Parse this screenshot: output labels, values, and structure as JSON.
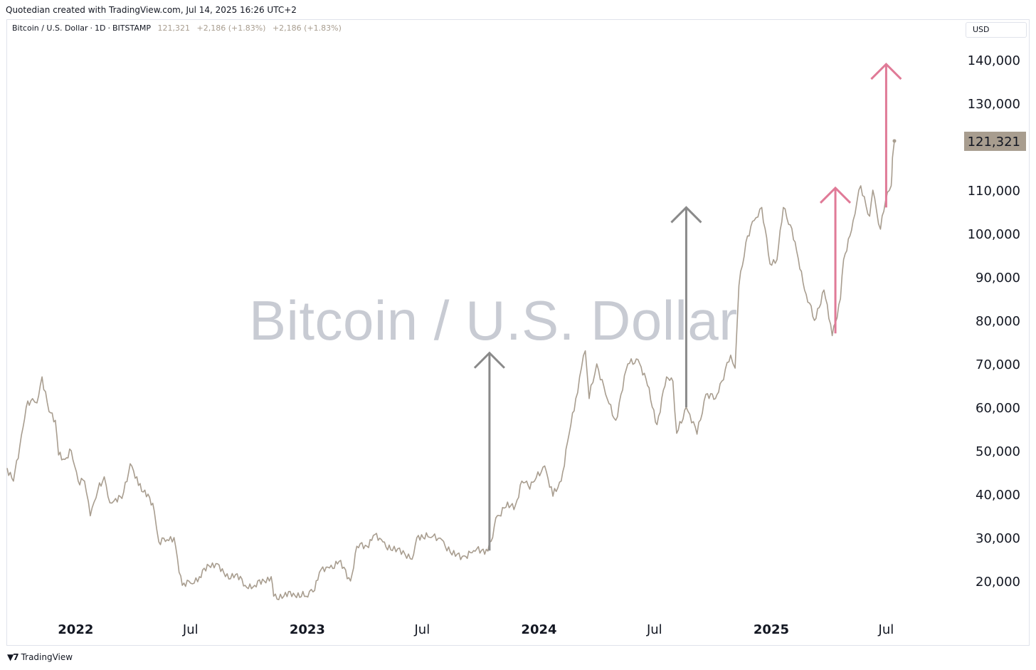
{
  "header": {
    "created_text": "Quotedian created with TradingView.com, Jul 14, 2025 16:26 UTC+2"
  },
  "legend": {
    "symbol": "Bitcoin / U.S. Dollar",
    "interval": "1D",
    "exchange": "BITSTAMP",
    "sep": "·",
    "last": "121,321",
    "change1": "+2,186 (+1.83%)",
    "change2": "+2,186 (+1.83%)"
  },
  "currency_label": "USD",
  "watermark": "Bitcoin / U.S. Dollar",
  "footer": {
    "logo_icon": "tradingview-logo-icon",
    "logo_text": "TradingView"
  },
  "colors": {
    "line": "#a89d8f",
    "arrow_gray": "#8a8a8a",
    "arrow_pink": "#e07a97",
    "last_badge": "#a89d8f"
  },
  "chart_data": {
    "type": "line",
    "x_start": "2021-09-15",
    "x_end": "2025-07-14",
    "ylim": [
      12000,
      145000
    ],
    "y_ticks": [
      {
        "value": 20000,
        "label": "20,000"
      },
      {
        "value": 30000,
        "label": "30,000"
      },
      {
        "value": 40000,
        "label": "40,000"
      },
      {
        "value": 50000,
        "label": "50,000"
      },
      {
        "value": 60000,
        "label": "60,000"
      },
      {
        "value": 70000,
        "label": "70,000"
      },
      {
        "value": 80000,
        "label": "80,000"
      },
      {
        "value": 90000,
        "label": "90,000"
      },
      {
        "value": 100000,
        "label": "100,000"
      },
      {
        "value": 110000,
        "label": "110,000"
      },
      {
        "value": 130000,
        "label": "130,000"
      },
      {
        "value": 140000,
        "label": "140,000"
      }
    ],
    "x_ticks": [
      {
        "date": "2022-01-01",
        "label": "2022",
        "bold": true
      },
      {
        "date": "2022-07-01",
        "label": "Jul",
        "bold": false
      },
      {
        "date": "2023-01-01",
        "label": "2023",
        "bold": true
      },
      {
        "date": "2023-07-01",
        "label": "Jul",
        "bold": false
      },
      {
        "date": "2024-01-01",
        "label": "2024",
        "bold": true
      },
      {
        "date": "2024-07-01",
        "label": "Jul",
        "bold": false
      },
      {
        "date": "2025-01-01",
        "label": "2025",
        "bold": true
      },
      {
        "date": "2025-07-01",
        "label": "Jul",
        "bold": false
      }
    ],
    "last_price": {
      "value": 121321,
      "label": "121,321"
    },
    "series": [
      {
        "points": [
          [
            "2021-09-15",
            46000
          ],
          [
            "2021-09-25",
            43000
          ],
          [
            "2021-10-05",
            51000
          ],
          [
            "2021-10-15",
            60000
          ],
          [
            "2021-10-25",
            62000
          ],
          [
            "2021-11-01",
            61000
          ],
          [
            "2021-11-09",
            67000
          ],
          [
            "2021-11-20",
            59000
          ],
          [
            "2021-11-30",
            57000
          ],
          [
            "2021-12-05",
            49000
          ],
          [
            "2021-12-15",
            48000
          ],
          [
            "2021-12-25",
            50000
          ],
          [
            "2022-01-05",
            43000
          ],
          [
            "2022-01-15",
            43000
          ],
          [
            "2022-01-24",
            35000
          ],
          [
            "2022-02-05",
            41000
          ],
          [
            "2022-02-15",
            44000
          ],
          [
            "2022-02-24",
            38000
          ],
          [
            "2022-03-05",
            39000
          ],
          [
            "2022-03-15",
            39000
          ],
          [
            "2022-03-28",
            47000
          ],
          [
            "2022-04-10",
            42000
          ],
          [
            "2022-04-25",
            40000
          ],
          [
            "2022-05-05",
            36000
          ],
          [
            "2022-05-12",
            29000
          ],
          [
            "2022-05-25",
            29500
          ],
          [
            "2022-06-05",
            30000
          ],
          [
            "2022-06-13",
            22000
          ],
          [
            "2022-06-18",
            19000
          ],
          [
            "2022-07-01",
            19500
          ],
          [
            "2022-07-15",
            21000
          ],
          [
            "2022-07-30",
            23500
          ],
          [
            "2022-08-10",
            24000
          ],
          [
            "2022-08-25",
            21000
          ],
          [
            "2022-09-10",
            21500
          ],
          [
            "2022-09-25",
            19000
          ],
          [
            "2022-10-10",
            19000
          ],
          [
            "2022-10-25",
            20000
          ],
          [
            "2022-11-05",
            21000
          ],
          [
            "2022-11-09",
            16500
          ],
          [
            "2022-11-25",
            16500
          ],
          [
            "2022-12-10",
            17200
          ],
          [
            "2022-12-30",
            16500
          ],
          [
            "2023-01-10",
            17500
          ],
          [
            "2023-01-20",
            22000
          ],
          [
            "2023-02-05",
            23000
          ],
          [
            "2023-02-20",
            24500
          ],
          [
            "2023-03-10",
            20000
          ],
          [
            "2023-03-20",
            28000
          ],
          [
            "2023-04-05",
            28000
          ],
          [
            "2023-04-15",
            30500
          ],
          [
            "2023-04-30",
            29000
          ],
          [
            "2023-05-15",
            27000
          ],
          [
            "2023-06-01",
            27000
          ],
          [
            "2023-06-15",
            25000
          ],
          [
            "2023-06-25",
            30500
          ],
          [
            "2023-07-15",
            30000
          ],
          [
            "2023-08-01",
            29500
          ],
          [
            "2023-08-17",
            26000
          ],
          [
            "2023-09-05",
            25800
          ],
          [
            "2023-09-20",
            27000
          ],
          [
            "2023-10-10",
            27300
          ],
          [
            "2023-10-20",
            30000
          ],
          [
            "2023-10-25",
            34500
          ],
          [
            "2023-11-10",
            37000
          ],
          [
            "2023-11-25",
            37500
          ],
          [
            "2023-12-05",
            43000
          ],
          [
            "2023-12-15",
            42000
          ],
          [
            "2023-12-25",
            43000
          ],
          [
            "2024-01-10",
            46500
          ],
          [
            "2024-01-23",
            39500
          ],
          [
            "2024-02-05",
            43000
          ],
          [
            "2024-02-15",
            52000
          ],
          [
            "2024-02-28",
            62000
          ],
          [
            "2024-03-05",
            67000
          ],
          [
            "2024-03-14",
            73000
          ],
          [
            "2024-03-20",
            62000
          ],
          [
            "2024-04-01",
            70000
          ],
          [
            "2024-04-15",
            63000
          ],
          [
            "2024-05-01",
            57000
          ],
          [
            "2024-05-20",
            70000
          ],
          [
            "2024-06-05",
            71000
          ],
          [
            "2024-06-20",
            65000
          ],
          [
            "2024-07-05",
            56000
          ],
          [
            "2024-07-20",
            67000
          ],
          [
            "2024-07-30",
            66000
          ],
          [
            "2024-08-05",
            54000
          ],
          [
            "2024-08-20",
            60000
          ],
          [
            "2024-09-06",
            53800
          ],
          [
            "2024-09-20",
            63000
          ],
          [
            "2024-10-05",
            62000
          ],
          [
            "2024-10-15",
            66000
          ],
          [
            "2024-10-29",
            72000
          ],
          [
            "2024-11-05",
            69000
          ],
          [
            "2024-11-11",
            88000
          ],
          [
            "2024-11-22",
            98000
          ],
          [
            "2024-12-05",
            103000
          ],
          [
            "2024-12-17",
            106000
          ],
          [
            "2024-12-30",
            93000
          ],
          [
            "2025-01-10",
            94000
          ],
          [
            "2025-01-20",
            106000
          ],
          [
            "2025-01-31",
            102000
          ],
          [
            "2025-02-10",
            96000
          ],
          [
            "2025-02-25",
            86000
          ],
          [
            "2025-03-10",
            80000
          ],
          [
            "2025-03-25",
            87000
          ],
          [
            "2025-04-07",
            76500
          ],
          [
            "2025-04-20",
            85000
          ],
          [
            "2025-04-25",
            94000
          ],
          [
            "2025-05-10",
            103000
          ],
          [
            "2025-05-22",
            111000
          ],
          [
            "2025-06-05",
            104000
          ],
          [
            "2025-06-10",
            110000
          ],
          [
            "2025-06-22",
            101000
          ],
          [
            "2025-06-30",
            107500
          ],
          [
            "2025-07-03",
            109500
          ],
          [
            "2025-07-09",
            111000
          ],
          [
            "2025-07-11",
            117500
          ],
          [
            "2025-07-14",
            121321
          ]
        ]
      }
    ],
    "annotations": [
      {
        "type": "arrow",
        "color": "gray",
        "date": "2023-10-15",
        "from": 27000,
        "to": 72500
      },
      {
        "type": "arrow",
        "color": "gray",
        "date": "2024-08-20",
        "from": 60000,
        "to": 106000
      },
      {
        "type": "arrow",
        "color": "pink",
        "date": "2025-04-12",
        "from": 77000,
        "to": 110500
      },
      {
        "type": "arrow",
        "color": "pink",
        "date": "2025-07-01",
        "from": 106000,
        "to": 139000
      }
    ]
  }
}
